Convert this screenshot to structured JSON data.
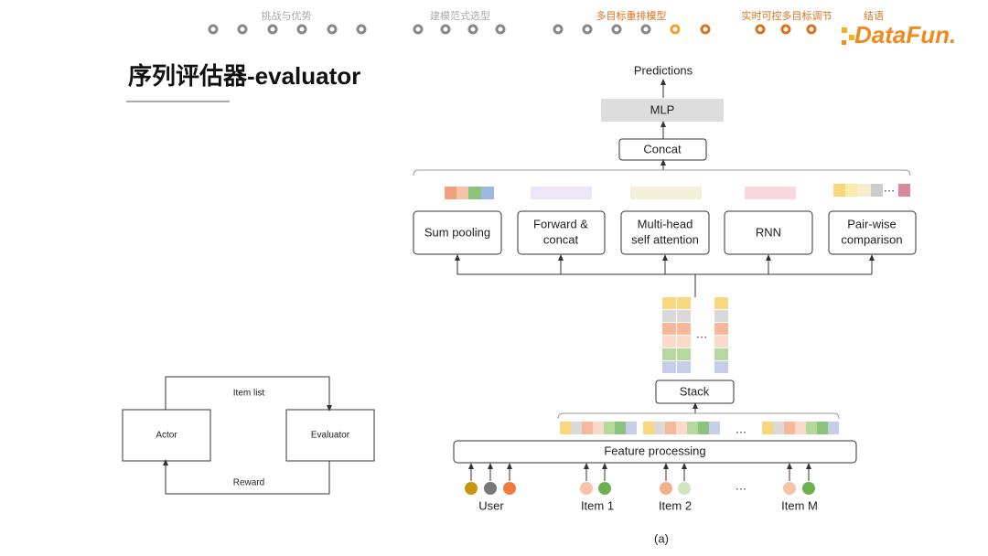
{
  "nav": {
    "sections": [
      "挑战与优势",
      "建模范式选型",
      "多目标重排模型",
      "实时可控多目标调节",
      "结语"
    ]
  },
  "logo": "DataFun.",
  "title": "序列评估器-evaluator",
  "loop": {
    "actor": "Actor",
    "evaluator": "Evaluator",
    "top": "Item list",
    "bottom": "Reward"
  },
  "diagram": {
    "output": "Predictions",
    "mlp": "MLP",
    "concat": "Concat",
    "modules": [
      [
        "Sum pooling"
      ],
      [
        "Forward &",
        "concat"
      ],
      [
        "Multi-head",
        "self attention"
      ],
      [
        "RNN"
      ],
      [
        "Pair-wise",
        "comparison"
      ]
    ],
    "stack": "Stack",
    "feature": "Feature processing",
    "inputs": [
      "User",
      "Item 1",
      "Item 2",
      "Item M"
    ],
    "ellipsis": "…",
    "caption": "(a)"
  }
}
